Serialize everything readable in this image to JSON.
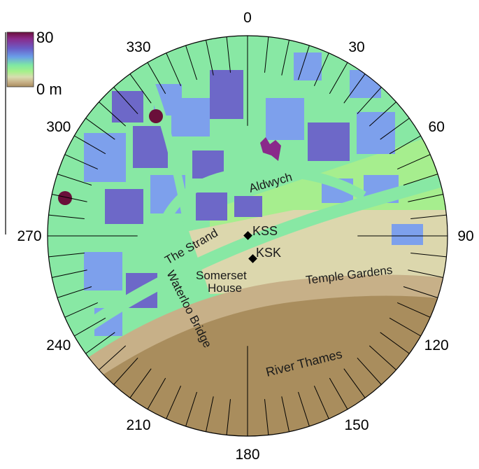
{
  "legend": {
    "max_label": "80",
    "min_label": "0 m",
    "colors": [
      "#6a0f3a",
      "#8a2a8a",
      "#6a5ec8",
      "#6a9ee8",
      "#7ee7a4",
      "#a6f08a",
      "#d8ddb0",
      "#c6ae86",
      "#a98d5d"
    ]
  },
  "directions": [
    {
      "label": "0",
      "deg": 0
    },
    {
      "label": "30",
      "deg": 30
    },
    {
      "label": "60",
      "deg": 60
    },
    {
      "label": "90",
      "deg": 90
    },
    {
      "label": "120",
      "deg": 120
    },
    {
      "label": "150",
      "deg": 150
    },
    {
      "label": "180",
      "deg": 180
    },
    {
      "label": "210",
      "deg": 210
    },
    {
      "label": "240",
      "deg": 240
    },
    {
      "label": "270",
      "deg": 270
    },
    {
      "label": "300",
      "deg": 300
    },
    {
      "label": "330",
      "deg": 330
    }
  ],
  "places": {
    "aldwych": "Aldwych",
    "strand": "The Strand",
    "somerset_1": "Somerset",
    "somerset_2": "House",
    "temple": "Temple Gardens",
    "waterloo": "Waterloo Bridge",
    "thames": "River Thames"
  },
  "sites": [
    {
      "label": "KSS"
    },
    {
      "label": "KSK"
    }
  ],
  "colors": {
    "street": "#88e8a4",
    "building_low": "#7da0ec",
    "building_high": "#6d68c8",
    "tall": "#6a0f3a",
    "river": "#a98d5d",
    "embankment": "#c7b088",
    "terrace": "#dcd7ad",
    "park": "#a3ee8c"
  }
}
